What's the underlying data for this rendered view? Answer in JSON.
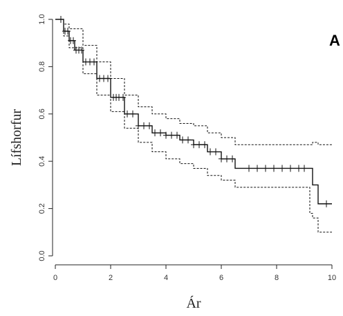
{
  "chart_data": {
    "type": "line",
    "xlabel": "Ár",
    "ylabel": "Lífshorfur",
    "panel_label": "A",
    "xlim": [
      0,
      10
    ],
    "ylim": [
      0,
      1
    ],
    "x_ticks": [
      0,
      2,
      4,
      6,
      8,
      10
    ],
    "y_ticks": [
      0.0,
      0.2,
      0.4,
      0.6,
      0.8,
      1.0
    ],
    "y_tick_labels": [
      "0.0",
      "0.2",
      "0.4",
      "0.6",
      "0.8",
      "1.0"
    ],
    "grid": false,
    "series": [
      {
        "role": "estimate",
        "style": "solid",
        "x": [
          0,
          0.3,
          0.5,
          0.7,
          1.0,
          1.5,
          2.0,
          2.5,
          3.0,
          3.5,
          4.0,
          4.5,
          5.0,
          5.5,
          6.0,
          6.5,
          7.0,
          8.0,
          9.0,
          9.3,
          9.5,
          10.0
        ],
        "y": [
          1.0,
          0.95,
          0.91,
          0.87,
          0.82,
          0.75,
          0.67,
          0.6,
          0.55,
          0.52,
          0.51,
          0.49,
          0.47,
          0.44,
          0.41,
          0.37,
          0.37,
          0.37,
          0.37,
          0.3,
          0.22,
          0.22
        ]
      },
      {
        "role": "upper-ci",
        "style": "dashed",
        "x": [
          0,
          0.3,
          0.5,
          1.0,
          1.5,
          2.0,
          2.5,
          3.0,
          3.5,
          4.0,
          4.5,
          5.0,
          5.5,
          6.0,
          6.5,
          7.0,
          8.0,
          9.0,
          9.3,
          9.5,
          10.0
        ],
        "y": [
          1.0,
          0.98,
          0.96,
          0.89,
          0.82,
          0.75,
          0.68,
          0.63,
          0.6,
          0.58,
          0.56,
          0.55,
          0.52,
          0.5,
          0.47,
          0.47,
          0.47,
          0.47,
          0.48,
          0.47,
          0.47
        ]
      },
      {
        "role": "lower-ci",
        "style": "dashed",
        "x": [
          0,
          0.3,
          0.5,
          1.0,
          1.5,
          2.0,
          2.5,
          3.0,
          3.5,
          4.0,
          4.5,
          5.0,
          5.5,
          6.0,
          6.5,
          7.0,
          8.0,
          9.0,
          9.2,
          9.3,
          9.5,
          10.0
        ],
        "y": [
          1.0,
          0.93,
          0.88,
          0.77,
          0.68,
          0.61,
          0.54,
          0.48,
          0.44,
          0.41,
          0.39,
          0.37,
          0.34,
          0.32,
          0.29,
          0.29,
          0.29,
          0.29,
          0.18,
          0.16,
          0.1,
          0.1
        ]
      }
    ],
    "censor_marks_x": [
      0.2,
      0.35,
      0.45,
      0.55,
      0.65,
      0.75,
      0.85,
      0.95,
      1.1,
      1.25,
      1.4,
      1.6,
      1.75,
      1.9,
      2.1,
      2.2,
      2.3,
      2.45,
      2.6,
      2.8,
      3.0,
      3.2,
      3.4,
      3.6,
      3.8,
      4.0,
      4.2,
      4.4,
      4.6,
      4.8,
      5.0,
      5.2,
      5.4,
      5.6,
      5.8,
      6.0,
      6.2,
      6.4,
      7.0,
      7.3,
      7.6,
      7.9,
      8.2,
      8.5,
      8.8,
      9.0,
      9.8
    ]
  }
}
